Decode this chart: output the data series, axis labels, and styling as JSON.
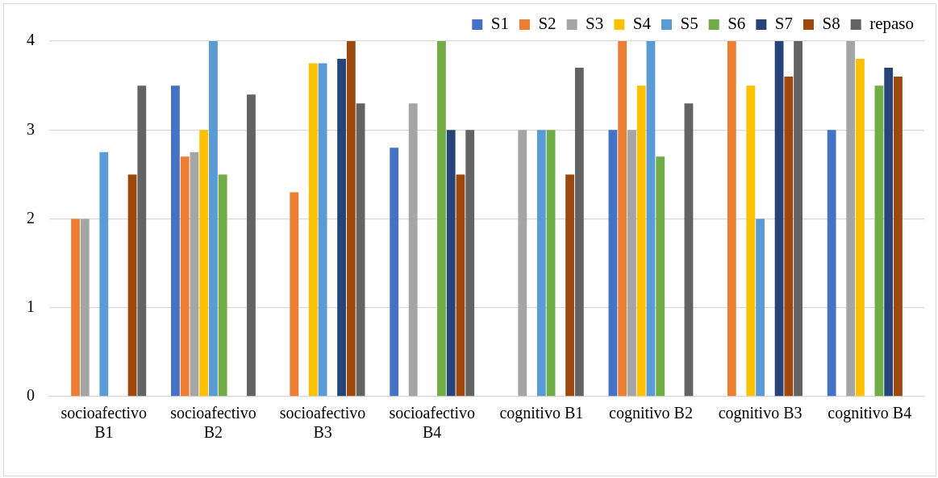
{
  "chart_data": {
    "type": "bar",
    "categories": [
      "socioafectivo B1",
      "socioafectivo B2",
      "socioafectivo B3",
      "socioafectivo B4",
      "cognitivo B1",
      "cognitivo B2",
      "cognitivo B3",
      "cognitivo B4"
    ],
    "series": [
      {
        "name": "S1",
        "color": "#4472c4",
        "values": [
          null,
          3.5,
          null,
          2.8,
          null,
          3,
          null,
          3
        ]
      },
      {
        "name": "S2",
        "color": "#ed7d31",
        "values": [
          2,
          2.7,
          2.3,
          null,
          null,
          4,
          4,
          null
        ]
      },
      {
        "name": "S3",
        "color": "#a5a5a5",
        "values": [
          2,
          2.75,
          null,
          3.3,
          3,
          3,
          null,
          4
        ]
      },
      {
        "name": "S4",
        "color": "#ffc000",
        "values": [
          null,
          3,
          3.75,
          null,
          null,
          3.5,
          3.5,
          3.8
        ]
      },
      {
        "name": "S5",
        "color": "#5b9bd5",
        "values": [
          2.75,
          4,
          3.75,
          null,
          3,
          4,
          2,
          null
        ]
      },
      {
        "name": "S6",
        "color": "#70ad47",
        "values": [
          null,
          2.5,
          null,
          4,
          3,
          2.7,
          null,
          3.5
        ]
      },
      {
        "name": "S7",
        "color": "#264478",
        "values": [
          null,
          null,
          3.8,
          3,
          null,
          null,
          4,
          3.7
        ]
      },
      {
        "name": "S8",
        "color": "#9e480e",
        "values": [
          2.5,
          null,
          4,
          2.5,
          2.5,
          null,
          3.6,
          3.6
        ]
      },
      {
        "name": "repaso",
        "color": "#636363",
        "values": [
          3.5,
          3.4,
          3.3,
          3,
          3.7,
          3.3,
          4,
          null
        ]
      }
    ],
    "ylim": [
      0,
      4
    ],
    "yticks": [
      0,
      1,
      2,
      3,
      4
    ],
    "grid": "y",
    "legend": "top right"
  }
}
